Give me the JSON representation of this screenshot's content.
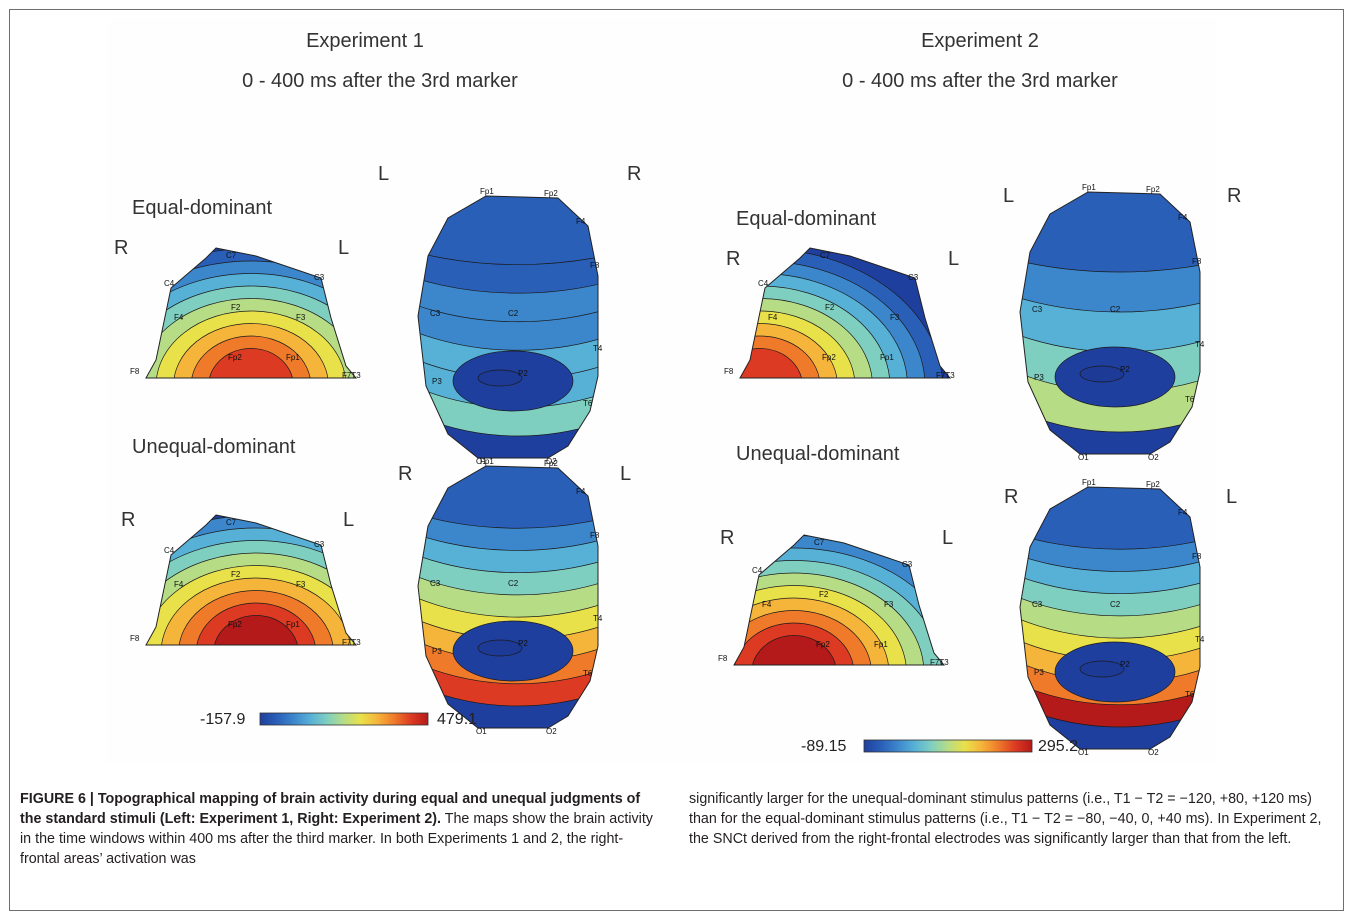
{
  "experiments": [
    {
      "title": "Experiment 1",
      "window": "0 - 400 ms after the 3rd marker",
      "conditions": [
        "Equal-dominant",
        "Unequal-dominant"
      ],
      "colorbar": {
        "min": "-157.9",
        "max": "479.1"
      }
    },
    {
      "title": "Experiment 2",
      "window": "0 - 400 ms after the 3rd marker",
      "conditions": [
        "Equal-dominant",
        "Unequal-dominant"
      ],
      "colorbar": {
        "min": "-89.15",
        "max": "295.2"
      }
    }
  ],
  "side_labels": {
    "left": "L",
    "right": "R"
  },
  "electrodes": {
    "frontal": [
      "C7",
      "C3",
      "C4",
      "F2",
      "F3",
      "F4",
      "F8",
      "Fp2",
      "Fp1",
      "F7",
      "T3",
      "F9"
    ],
    "top": [
      "Fp1",
      "Fp2",
      "F3",
      "F4",
      "F8",
      "C3",
      "C2",
      "T4",
      "P3",
      "P2",
      "T6",
      "O1",
      "O2"
    ]
  },
  "colorscale": [
    "#1f3f9e",
    "#2a5fb8",
    "#3c86cc",
    "#57b0d6",
    "#7fcfc0",
    "#b7dc86",
    "#e9e14a",
    "#f5b43a",
    "#ef7a2a",
    "#dc3a22",
    "#b51a1a"
  ],
  "caption": {
    "figure_label": "FIGURE 6 | ",
    "bold_title": "Topographical mapping of brain activity during equal and unequal judgments of the standard stimuli (Left: Experiment 1, Right: Experiment 2).",
    "left_text": " The maps show the brain activity in the time windows within 400 ms after the third marker. In both Experiments 1 and 2, the right-frontal areas’ activation was",
    "right_text": "significantly larger for the unequal-dominant stimulus patterns (i.e., T1 − T2 = −120, +80, +120 ms) than for the equal-dominant stimulus patterns (i.e., T1 − T2 = −80, −40, 0, +40 ms). In Experiment 2, the SNCt derived from the right-frontal electrodes was significantly larger than that from the left."
  }
}
